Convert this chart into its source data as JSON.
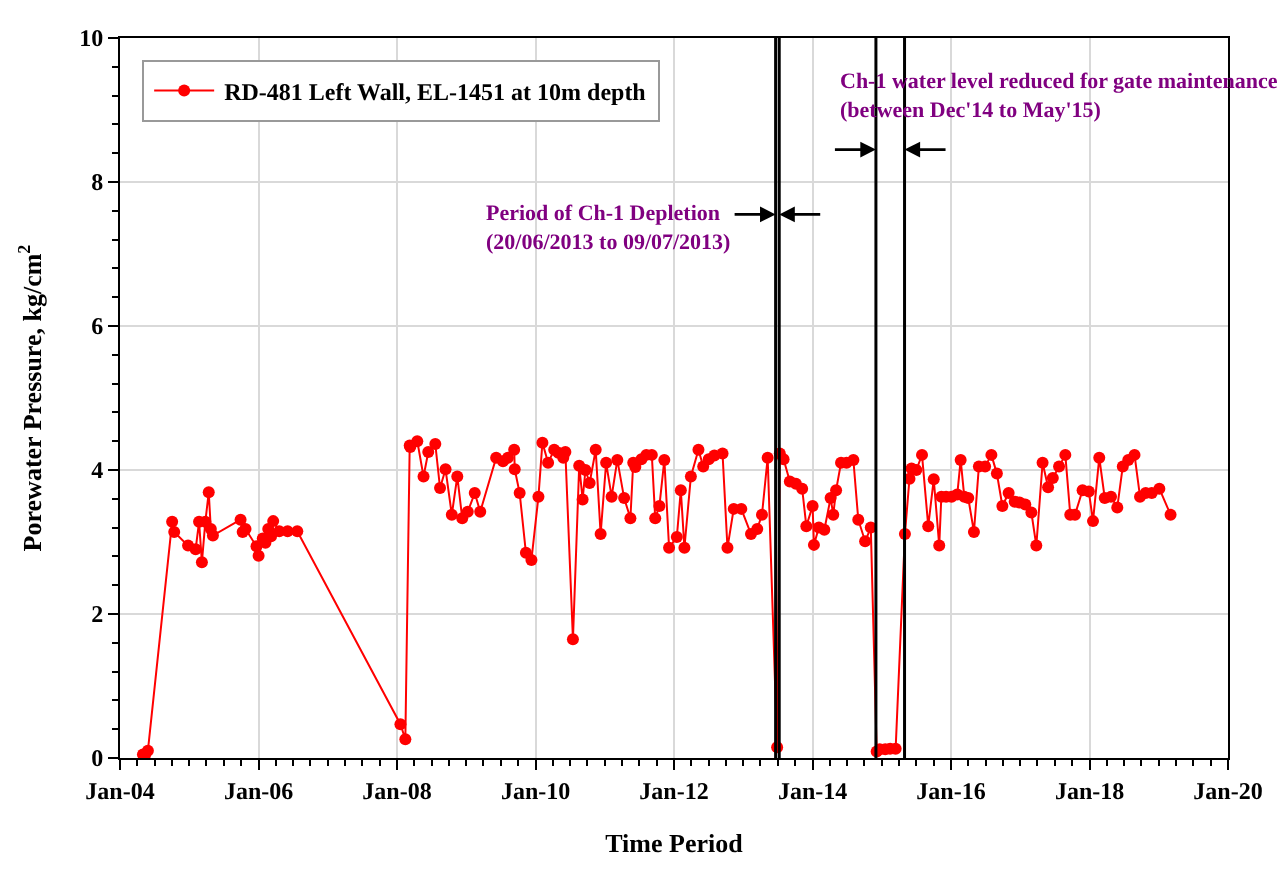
{
  "chart_data": {
    "type": "line",
    "xlabel": "Time Period",
    "ylabel": "Porewater Pressure, kg/cm$^{2}$",
    "x": [
      "2004-05-01",
      "2004-05-12",
      "2004-05-27",
      "2004-10-02",
      "2004-10-13",
      "2004-12-25",
      "2005-02-03",
      "2005-02-21",
      "2005-03-08",
      "2005-03-26",
      "2005-04-13",
      "2005-04-24",
      "2005-05-05",
      "2005-09-28",
      "2005-10-09",
      "2005-10-24",
      "2005-12-21",
      "2006-01-01",
      "2006-01-23",
      "2006-02-06",
      "2006-02-21",
      "2006-03-08",
      "2006-03-19",
      "2006-04-20",
      "2006-06-03",
      "2006-07-24",
      "2008-01-19",
      "2008-02-14",
      "2008-03-08",
      "2008-03-11",
      "2008-04-17",
      "2008-05-20",
      "2008-06-14",
      "2008-07-21",
      "2008-08-15",
      "2008-09-13",
      "2008-10-16",
      "2008-11-14",
      "2008-12-10",
      "2009-01-08",
      "2009-02-14",
      "2009-03-15",
      "2009-06-07",
      "2009-07-13",
      "2009-08-08",
      "2009-09-10",
      "2009-09-13",
      "2009-10-09",
      "2009-11-11",
      "2009-12-10",
      "2010-01-16",
      "2010-02-06",
      "2010-03-08",
      "2010-04-09",
      "2010-05-01",
      "2010-05-27",
      "2010-06-07",
      "2010-07-17",
      "2010-08-19",
      "2010-09-06",
      "2010-09-21",
      "2010-10-13",
      "2010-11-14",
      "2010-12-10",
      "2011-01-08",
      "2011-02-06",
      "2011-03-08",
      "2011-04-13",
      "2011-05-16",
      "2011-05-31",
      "2011-06-11",
      "2011-07-13",
      "2011-08-08",
      "2011-09-06",
      "2011-09-24",
      "2011-10-16",
      "2011-11-11",
      "2011-12-06",
      "2012-01-16",
      "2012-02-06",
      "2012-02-25",
      "2012-03-30",
      "2012-05-09",
      "2012-06-03",
      "2012-07-02",
      "2012-08-01",
      "2012-09-13",
      "2012-10-09",
      "2012-11-11",
      "2012-12-21",
      "2013-02-10",
      "2013-03-15",
      "2013-04-09",
      "2013-05-09",
      "2013-06-28",
      "2013-07-12",
      "2013-08-01",
      "2013-09-03",
      "2013-10-05",
      "2013-11-07",
      "2013-11-29",
      "2014-01-01",
      "2014-01-08",
      "2014-02-03",
      "2014-03-04",
      "2014-04-06",
      "2014-04-20",
      "2014-05-05",
      "2014-05-31",
      "2014-06-29",
      "2014-08-04",
      "2014-08-30",
      "2014-10-05",
      "2014-11-04",
      "2014-12-05",
      "2014-12-21",
      "2015-01-19",
      "2015-02-14",
      "2015-03-15",
      "2015-05-03",
      "2015-05-27",
      "2015-06-07",
      "2015-07-02",
      "2015-08-01",
      "2015-09-03",
      "2015-10-02",
      "2015-10-31",
      "2015-11-11",
      "2015-12-06",
      "2016-01-04",
      "2016-02-03",
      "2016-02-21",
      "2016-03-11",
      "2016-04-01",
      "2016-05-01",
      "2016-05-27",
      "2016-06-29",
      "2016-08-01",
      "2016-08-30",
      "2016-09-28",
      "2016-10-31",
      "2016-12-02",
      "2016-12-28",
      "2017-01-27",
      "2017-02-28",
      "2017-03-26",
      "2017-04-28",
      "2017-05-27",
      "2017-06-21",
      "2017-07-24",
      "2017-08-26",
      "2017-09-21",
      "2017-10-16",
      "2017-11-25",
      "2017-12-28",
      "2018-01-19",
      "2018-02-21",
      "2018-03-22",
      "2018-04-24",
      "2018-05-27",
      "2018-06-25",
      "2018-07-24",
      "2018-08-26",
      "2018-09-24",
      "2018-10-24",
      "2018-11-25",
      "2019-01-04",
      "2019-03-04"
    ],
    "series": [
      {
        "name": "RD-481 Left Wall, EL-1451 at 10m depth",
        "color": "#ff0000",
        "values": [
          0.05,
          0.04,
          0.1,
          3.28,
          3.14,
          2.95,
          2.9,
          3.28,
          2.72,
          3.28,
          3.69,
          3.18,
          3.09,
          3.31,
          3.14,
          3.18,
          2.94,
          2.81,
          3.05,
          2.99,
          3.18,
          3.08,
          3.29,
          3.15,
          3.15,
          3.15,
          0.47,
          0.26,
          4.34,
          4.32,
          4.4,
          3.91,
          4.25,
          4.36,
          3.75,
          4.01,
          3.38,
          3.91,
          3.33,
          3.42,
          3.68,
          3.42,
          4.17,
          4.12,
          4.17,
          4.28,
          4.01,
          3.68,
          2.85,
          2.75,
          3.63,
          4.38,
          4.1,
          4.28,
          4.24,
          4.17,
          4.25,
          1.65,
          4.06,
          3.59,
          4.0,
          3.82,
          4.28,
          3.11,
          4.1,
          3.63,
          4.14,
          3.61,
          3.33,
          4.1,
          4.04,
          4.15,
          4.21,
          4.21,
          3.33,
          3.5,
          4.14,
          2.92,
          3.07,
          3.72,
          2.92,
          3.91,
          4.28,
          4.05,
          4.15,
          4.2,
          4.23,
          2.92,
          3.46,
          3.46,
          3.11,
          3.18,
          3.38,
          4.17,
          0.15,
          4.23,
          4.15,
          3.84,
          3.81,
          3.74,
          3.22,
          3.5,
          2.96,
          3.2,
          3.17,
          3.61,
          3.38,
          3.72,
          4.1,
          4.1,
          4.14,
          3.31,
          3.01,
          3.2,
          0.09,
          0.12,
          0.12,
          0.13,
          0.13,
          3.11,
          3.88,
          4.02,
          4.0,
          4.21,
          3.22,
          3.87,
          2.95,
          3.63,
          3.63,
          3.63,
          3.66,
          4.14,
          3.63,
          3.61,
          3.14,
          4.05,
          4.05,
          4.21,
          3.95,
          3.5,
          3.68,
          3.56,
          3.55,
          3.52,
          3.41,
          2.95,
          4.1,
          3.76,
          3.89,
          4.05,
          4.21,
          3.38,
          3.38,
          3.72,
          3.7,
          3.29,
          4.17,
          3.61,
          3.63,
          3.48,
          4.05,
          4.14,
          4.21,
          3.63,
          3.68,
          3.68,
          3.74,
          3.38
        ]
      }
    ],
    "xlim": [
      "2004-01-01",
      "2020-01-01"
    ],
    "xticks": [
      {
        "value": "2004-01-01",
        "label": "Jan-04"
      },
      {
        "value": "2006-01-01",
        "label": "Jan-06"
      },
      {
        "value": "2008-01-01",
        "label": "Jan-08"
      },
      {
        "value": "2010-01-01",
        "label": "Jan-10"
      },
      {
        "value": "2012-01-01",
        "label": "Jan-12"
      },
      {
        "value": "2014-01-01",
        "label": "Jan-14"
      },
      {
        "value": "2016-01-01",
        "label": "Jan-16"
      },
      {
        "value": "2018-01-01",
        "label": "Jan-18"
      },
      {
        "value": "2020-01-01",
        "label": "Jan-20"
      }
    ],
    "ylim": [
      0,
      10
    ],
    "yticks": [
      0,
      2,
      4,
      6,
      8,
      10
    ],
    "grid": true,
    "legend": "top left",
    "marker": "circle",
    "line_style": "solid",
    "ref_lines": [
      {
        "axis": "x",
        "value": "2013-06-20",
        "color": "#000000"
      },
      {
        "axis": "x",
        "value": "2013-07-09",
        "color": "#000000"
      },
      {
        "axis": "x",
        "value": "2014-12-01",
        "color": "#000000"
      },
      {
        "axis": "x",
        "value": "2015-05-01",
        "color": "#000000"
      }
    ],
    "annotations": [
      "Period of Ch-1 Depletion\n(20/06/2013 to 09/07/2013)",
      "Ch-1 water level reduced for gate maintenance\n(between Dec'14 to May'15)"
    ]
  }
}
